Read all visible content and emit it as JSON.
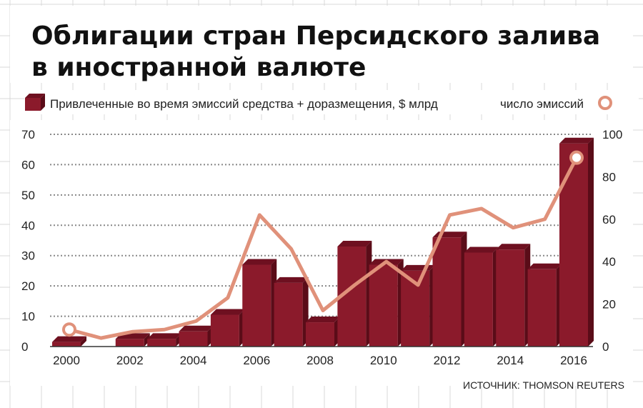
{
  "chart_data": {
    "type": "bar+line",
    "title_lines": [
      "Облигации стран Персидского залива",
      "в иностранной валюте"
    ],
    "x": [
      2000,
      2001,
      2002,
      2003,
      2004,
      2005,
      2006,
      2007,
      2008,
      2009,
      2010,
      2011,
      2012,
      2013,
      2014,
      2015,
      2016
    ],
    "x_tick_labels": [
      "2000",
      "2002",
      "2004",
      "2006",
      "2008",
      "2010",
      "2012",
      "2014",
      "2016"
    ],
    "series": [
      {
        "name": "Привлеченные во время эмиссий средства + доразмещения, $ млрд",
        "kind": "bar",
        "axis": "left",
        "color": "#8b1a2b",
        "values": [
          1.5,
          0,
          2.5,
          2.5,
          5,
          10.5,
          27,
          21,
          8,
          33,
          27,
          25,
          36,
          31,
          32,
          25.5,
          67
        ]
      },
      {
        "name": "число эмиссий",
        "kind": "line",
        "axis": "right",
        "color": "#e0917a",
        "values": [
          8,
          4,
          7,
          8,
          12,
          23,
          62,
          46,
          17,
          29,
          40,
          29,
          62,
          65,
          56,
          60,
          89
        ]
      }
    ],
    "left_axis": {
      "min": 0,
      "max": 70,
      "ticks": [
        0,
        10,
        20,
        30,
        40,
        50,
        60,
        70
      ]
    },
    "right_axis": {
      "min": 0,
      "max": 100,
      "ticks": [
        0,
        20,
        40,
        60,
        80,
        100
      ]
    },
    "legend_position": "top",
    "grid": true,
    "source": "ИСТОЧНИК: THOMSON REUTERS"
  },
  "colors": {
    "bar_front": "#8b1a2b",
    "bar_top": "#6e1020",
    "bar_side": "#5a0c18",
    "line": "#e0917a",
    "background_grid": "#d8d8d8",
    "dotted_grid": "#888888"
  }
}
